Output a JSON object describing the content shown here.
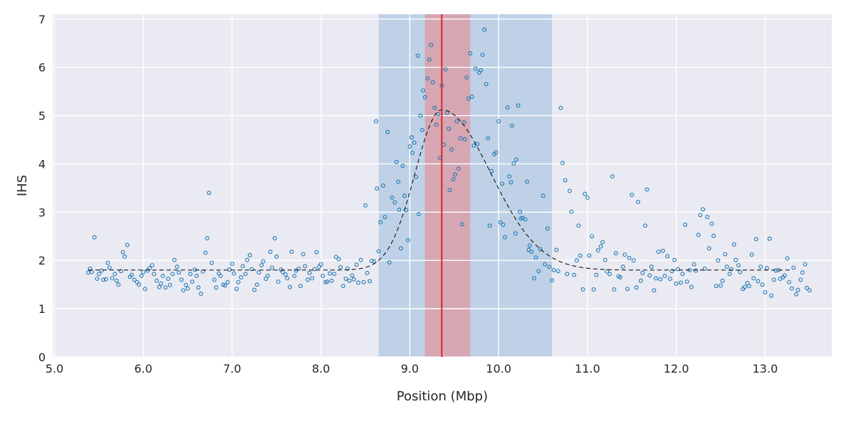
{
  "chart_data": {
    "type": "scatter",
    "xlabel": "Position (Mbp)",
    "ylabel": "IHS",
    "xlim": [
      4.98,
      13.75
    ],
    "ylim": [
      0,
      7.1
    ],
    "xticks": [
      5.0,
      6.0,
      7.0,
      8.0,
      9.0,
      10.0,
      11.0,
      12.0,
      13.0
    ],
    "xtick_labels": [
      "5.0",
      "6.0",
      "7.0",
      "8.0",
      "9.0",
      "10.0",
      "11.0",
      "12.0",
      "13.0"
    ],
    "yticks": [
      0,
      1,
      2,
      3,
      4,
      5,
      6,
      7
    ],
    "ytick_labels": [
      "0",
      "1",
      "2",
      "3",
      "4",
      "5",
      "6",
      "7"
    ],
    "grid": true,
    "colors": {
      "background": "#eaeaf2",
      "grid": "#ffffff",
      "point": "#1f77b4",
      "outer_band": "#92b7d9",
      "inner_band": "#e6898f",
      "peak_line": "#d62728",
      "fit_curve": "#000000"
    },
    "regions": {
      "outer_band": [
        8.65,
        10.6
      ],
      "inner_band": [
        9.17,
        9.68
      ],
      "peak_line": 9.36
    },
    "fit_curve": {
      "style": "dashed",
      "baseline": 1.8,
      "peak_x": 9.36,
      "peak_y": 5.12,
      "left_width": 0.3,
      "right_width": 0.55,
      "x_range": [
        5.38,
        13.3
      ]
    },
    "points": [
      [
        5.38,
        1.75
      ],
      [
        5.4,
        1.83
      ],
      [
        5.42,
        1.76
      ],
      [
        5.45,
        2.48
      ],
      [
        5.48,
        1.62
      ],
      [
        5.5,
        1.72
      ],
      [
        5.53,
        1.79
      ],
      [
        5.55,
        1.6
      ],
      [
        5.58,
        1.61
      ],
      [
        5.6,
        1.95
      ],
      [
        5.62,
        1.85
      ],
      [
        5.65,
        1.63
      ],
      [
        5.68,
        1.72
      ],
      [
        5.7,
        1.58
      ],
      [
        5.72,
        1.5
      ],
      [
        5.75,
        1.78
      ],
      [
        5.77,
        2.17
      ],
      [
        5.79,
        2.08
      ],
      [
        5.82,
        2.32
      ],
      [
        5.85,
        1.66
      ],
      [
        5.87,
        1.7
      ],
      [
        5.9,
        1.6
      ],
      [
        5.93,
        1.55
      ],
      [
        5.95,
        1.5
      ],
      [
        5.98,
        1.68
      ],
      [
        6.0,
        1.76
      ],
      [
        6.02,
        1.41
      ],
      [
        6.05,
        1.79
      ],
      [
        6.07,
        1.84
      ],
      [
        6.1,
        1.9
      ],
      [
        6.12,
        1.72
      ],
      [
        6.15,
        1.58
      ],
      [
        6.18,
        1.45
      ],
      [
        6.2,
        1.52
      ],
      [
        6.22,
        1.68
      ],
      [
        6.25,
        1.44
      ],
      [
        6.28,
        1.62
      ],
      [
        6.3,
        1.49
      ],
      [
        6.33,
        1.72
      ],
      [
        6.35,
        2.01
      ],
      [
        6.38,
        1.87
      ],
      [
        6.4,
        1.75
      ],
      [
        6.43,
        1.6
      ],
      [
        6.45,
        1.38
      ],
      [
        6.48,
        1.49
      ],
      [
        6.5,
        1.42
      ],
      [
        6.53,
        1.72
      ],
      [
        6.55,
        1.56
      ],
      [
        6.58,
        1.81
      ],
      [
        6.6,
        1.68
      ],
      [
        6.62,
        1.44
      ],
      [
        6.65,
        1.31
      ],
      [
        6.67,
        1.77
      ],
      [
        6.7,
        2.16
      ],
      [
        6.72,
        2.46
      ],
      [
        6.74,
        3.4
      ],
      [
        6.77,
        1.95
      ],
      [
        6.8,
        1.6
      ],
      [
        6.82,
        1.44
      ],
      [
        6.85,
        1.73
      ],
      [
        6.87,
        1.68
      ],
      [
        6.9,
        1.5
      ],
      [
        6.92,
        1.48
      ],
      [
        6.95,
        1.55
      ],
      [
        6.97,
        1.81
      ],
      [
        7.0,
        1.93
      ],
      [
        7.02,
        1.73
      ],
      [
        7.05,
        1.41
      ],
      [
        7.07,
        1.55
      ],
      [
        7.1,
        1.65
      ],
      [
        7.12,
        1.88
      ],
      [
        7.15,
        1.72
      ],
      [
        7.17,
        2.01
      ],
      [
        7.2,
        2.11
      ],
      [
        7.22,
        1.82
      ],
      [
        7.25,
        1.39
      ],
      [
        7.28,
        1.5
      ],
      [
        7.3,
        1.75
      ],
      [
        7.33,
        1.9
      ],
      [
        7.35,
        1.98
      ],
      [
        7.38,
        1.62
      ],
      [
        7.4,
        1.68
      ],
      [
        7.43,
        2.18
      ],
      [
        7.45,
        1.85
      ],
      [
        7.48,
        2.46
      ],
      [
        7.5,
        2.08
      ],
      [
        7.52,
        1.56
      ],
      [
        7.55,
        1.81
      ],
      [
        7.57,
        1.76
      ],
      [
        7.6,
        1.71
      ],
      [
        7.62,
        1.63
      ],
      [
        7.65,
        1.45
      ],
      [
        7.67,
        2.18
      ],
      [
        7.7,
        1.68
      ],
      [
        7.72,
        1.79
      ],
      [
        7.75,
        1.83
      ],
      [
        7.77,
        1.47
      ],
      [
        7.8,
        2.13
      ],
      [
        7.82,
        1.88
      ],
      [
        7.85,
        1.6
      ],
      [
        7.87,
        1.74
      ],
      [
        7.9,
        1.63
      ],
      [
        7.93,
        1.82
      ],
      [
        7.95,
        2.17
      ],
      [
        7.98,
        1.87
      ],
      [
        8.0,
        1.92
      ],
      [
        8.02,
        1.68
      ],
      [
        8.05,
        1.55
      ],
      [
        8.07,
        1.56
      ],
      [
        8.1,
        1.73
      ],
      [
        8.12,
        1.58
      ],
      [
        8.15,
        1.72
      ],
      [
        8.17,
        2.07
      ],
      [
        8.2,
        2.03
      ],
      [
        8.22,
        1.86
      ],
      [
        8.25,
        1.47
      ],
      [
        8.28,
        1.62
      ],
      [
        8.3,
        1.83
      ],
      [
        8.32,
        1.58
      ],
      [
        8.35,
        1.69
      ],
      [
        8.37,
        1.61
      ],
      [
        8.4,
        1.91
      ],
      [
        8.42,
        1.54
      ],
      [
        8.45,
        2.01
      ],
      [
        8.48,
        1.55
      ],
      [
        8.5,
        3.14
      ],
      [
        8.52,
        1.74
      ],
      [
        8.55,
        1.57
      ],
      [
        8.57,
        1.99
      ],
      [
        8.6,
        1.98
      ],
      [
        8.62,
        4.88
      ],
      [
        8.63,
        3.49
      ],
      [
        8.65,
        2.19
      ],
      [
        8.67,
        2.79
      ],
      [
        8.7,
        3.55
      ],
      [
        8.72,
        2.9
      ],
      [
        8.75,
        4.66
      ],
      [
        8.77,
        1.96
      ],
      [
        8.8,
        3.3
      ],
      [
        8.83,
        3.2
      ],
      [
        8.85,
        4.04
      ],
      [
        8.87,
        3.63
      ],
      [
        8.88,
        3.05
      ],
      [
        8.9,
        2.25
      ],
      [
        8.92,
        3.96
      ],
      [
        8.94,
        3.34
      ],
      [
        8.96,
        3.04
      ],
      [
        8.98,
        2.42
      ],
      [
        9.0,
        4.36
      ],
      [
        9.02,
        4.55
      ],
      [
        9.03,
        4.23
      ],
      [
        9.05,
        4.44
      ],
      [
        9.07,
        3.73
      ],
      [
        9.09,
        6.24
      ],
      [
        9.1,
        2.96
      ],
      [
        9.12,
        5.0
      ],
      [
        9.14,
        4.7
      ],
      [
        9.15,
        5.52
      ],
      [
        9.17,
        5.38
      ],
      [
        9.2,
        5.77
      ],
      [
        9.22,
        6.16
      ],
      [
        9.24,
        6.46
      ],
      [
        9.26,
        5.69
      ],
      [
        9.28,
        5.16
      ],
      [
        9.3,
        4.81
      ],
      [
        9.32,
        5.03
      ],
      [
        9.34,
        4.12
      ],
      [
        9.36,
        5.62
      ],
      [
        9.38,
        4.4
      ],
      [
        9.4,
        5.96
      ],
      [
        9.42,
        5.06
      ],
      [
        9.44,
        4.73
      ],
      [
        9.45,
        3.46
      ],
      [
        9.47,
        4.3
      ],
      [
        9.49,
        3.68
      ],
      [
        9.51,
        3.78
      ],
      [
        9.53,
        4.88
      ],
      [
        9.55,
        3.9
      ],
      [
        9.57,
        4.53
      ],
      [
        9.59,
        2.75
      ],
      [
        9.61,
        4.86
      ],
      [
        9.62,
        4.51
      ],
      [
        9.64,
        5.79
      ],
      [
        9.66,
        5.35
      ],
      [
        9.68,
        6.29
      ],
      [
        9.7,
        5.39
      ],
      [
        9.72,
        4.38
      ],
      [
        9.74,
        5.97
      ],
      [
        9.76,
        4.41
      ],
      [
        9.78,
        5.89
      ],
      [
        9.8,
        5.94
      ],
      [
        9.82,
        6.26
      ],
      [
        9.84,
        6.78
      ],
      [
        9.86,
        5.65
      ],
      [
        9.88,
        4.53
      ],
      [
        9.9,
        2.72
      ],
      [
        9.92,
        3.85
      ],
      [
        9.95,
        4.2
      ],
      [
        9.97,
        4.24
      ],
      [
        10.0,
        4.88
      ],
      [
        10.02,
        2.79
      ],
      [
        10.04,
        3.59
      ],
      [
        10.05,
        2.74
      ],
      [
        10.07,
        2.48
      ],
      [
        10.1,
        5.17
      ],
      [
        10.12,
        3.74
      ],
      [
        10.14,
        3.62
      ],
      [
        10.15,
        4.79
      ],
      [
        10.17,
        4.01
      ],
      [
        10.19,
        2.56
      ],
      [
        10.2,
        4.09
      ],
      [
        10.22,
        5.21
      ],
      [
        10.24,
        3.01
      ],
      [
        10.25,
        2.87
      ],
      [
        10.27,
        2.88
      ],
      [
        10.3,
        2.85
      ],
      [
        10.32,
        3.63
      ],
      [
        10.34,
        2.22
      ],
      [
        10.35,
        2.31
      ],
      [
        10.37,
        2.18
      ],
      [
        10.4,
        1.63
      ],
      [
        10.42,
        2.06
      ],
      [
        10.45,
        1.78
      ],
      [
        10.47,
        2.23
      ],
      [
        10.5,
        3.34
      ],
      [
        10.52,
        1.92
      ],
      [
        10.55,
        2.66
      ],
      [
        10.57,
        1.87
      ],
      [
        10.6,
        1.59
      ],
      [
        10.62,
        1.8
      ],
      [
        10.65,
        2.22
      ],
      [
        10.67,
        1.78
      ],
      [
        10.7,
        5.16
      ],
      [
        10.72,
        4.02
      ],
      [
        10.75,
        3.66
      ],
      [
        10.77,
        1.72
      ],
      [
        10.8,
        3.44
      ],
      [
        10.82,
        3.01
      ],
      [
        10.85,
        1.7
      ],
      [
        10.88,
        2.0
      ],
      [
        10.9,
        2.72
      ],
      [
        10.92,
        2.1
      ],
      [
        10.95,
        1.4
      ],
      [
        10.97,
        3.38
      ],
      [
        11.0,
        3.3
      ],
      [
        11.02,
        2.1
      ],
      [
        11.05,
        2.5
      ],
      [
        11.07,
        1.4
      ],
      [
        11.1,
        1.7
      ],
      [
        11.12,
        2.21
      ],
      [
        11.15,
        2.29
      ],
      [
        11.17,
        2.38
      ],
      [
        11.2,
        2.01
      ],
      [
        11.22,
        1.77
      ],
      [
        11.25,
        1.72
      ],
      [
        11.28,
        3.74
      ],
      [
        11.3,
        1.4
      ],
      [
        11.32,
        2.15
      ],
      [
        11.35,
        1.67
      ],
      [
        11.37,
        1.65
      ],
      [
        11.4,
        1.87
      ],
      [
        11.42,
        2.12
      ],
      [
        11.45,
        1.41
      ],
      [
        11.47,
        2.05
      ],
      [
        11.5,
        3.36
      ],
      [
        11.52,
        2.0
      ],
      [
        11.55,
        1.44
      ],
      [
        11.57,
        3.21
      ],
      [
        11.6,
        1.58
      ],
      [
        11.62,
        1.74
      ],
      [
        11.65,
        2.72
      ],
      [
        11.67,
        3.47
      ],
      [
        11.7,
        1.69
      ],
      [
        11.72,
        1.87
      ],
      [
        11.75,
        1.38
      ],
      [
        11.77,
        1.63
      ],
      [
        11.8,
        2.18
      ],
      [
        11.82,
        1.61
      ],
      [
        11.85,
        2.2
      ],
      [
        11.87,
        1.68
      ],
      [
        11.9,
        2.09
      ],
      [
        11.93,
        1.62
      ],
      [
        11.95,
        1.78
      ],
      [
        11.98,
        2.01
      ],
      [
        12.0,
        1.52
      ],
      [
        12.02,
        1.82
      ],
      [
        12.05,
        1.54
      ],
      [
        12.07,
        1.72
      ],
      [
        12.1,
        2.74
      ],
      [
        12.12,
        1.56
      ],
      [
        12.15,
        1.8
      ],
      [
        12.17,
        1.45
      ],
      [
        12.2,
        1.92
      ],
      [
        12.22,
        1.79
      ],
      [
        12.25,
        2.53
      ],
      [
        12.27,
        2.94
      ],
      [
        12.3,
        3.06
      ],
      [
        12.32,
        1.83
      ],
      [
        12.35,
        2.9
      ],
      [
        12.37,
        2.25
      ],
      [
        12.4,
        2.76
      ],
      [
        12.42,
        2.51
      ],
      [
        12.45,
        1.47
      ],
      [
        12.47,
        2.0
      ],
      [
        12.5,
        1.48
      ],
      [
        12.52,
        1.58
      ],
      [
        12.55,
        2.13
      ],
      [
        12.57,
        1.87
      ],
      [
        12.6,
        1.72
      ],
      [
        12.62,
        1.82
      ],
      [
        12.65,
        2.33
      ],
      [
        12.67,
        2.01
      ],
      [
        12.7,
        1.9
      ],
      [
        12.72,
        1.76
      ],
      [
        12.75,
        1.41
      ],
      [
        12.77,
        1.45
      ],
      [
        12.8,
        1.53
      ],
      [
        12.82,
        1.47
      ],
      [
        12.85,
        2.12
      ],
      [
        12.87,
        1.63
      ],
      [
        12.9,
        2.44
      ],
      [
        12.92,
        1.57
      ],
      [
        12.95,
        1.87
      ],
      [
        12.97,
        1.5
      ],
      [
        13.0,
        1.34
      ],
      [
        13.02,
        1.84
      ],
      [
        13.05,
        2.45
      ],
      [
        13.07,
        1.27
      ],
      [
        13.1,
        1.6
      ],
      [
        13.12,
        1.79
      ],
      [
        13.15,
        1.8
      ],
      [
        13.17,
        1.62
      ],
      [
        13.2,
        1.65
      ],
      [
        13.22,
        1.69
      ],
      [
        13.25,
        2.04
      ],
      [
        13.27,
        1.55
      ],
      [
        13.3,
        1.42
      ],
      [
        13.32,
        1.85
      ],
      [
        13.35,
        1.3
      ],
      [
        13.37,
        1.39
      ],
      [
        13.4,
        1.6
      ],
      [
        13.42,
        1.75
      ],
      [
        13.45,
        1.92
      ],
      [
        13.47,
        1.43
      ],
      [
        13.5,
        1.38
      ]
    ]
  }
}
